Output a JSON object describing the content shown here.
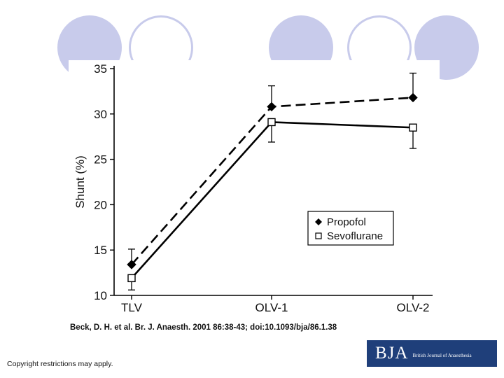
{
  "theme": {
    "decor_fill": "#c8cbeb",
    "logo_bg": "#1f3f7a"
  },
  "chart_data": {
    "type": "line",
    "title": "",
    "xlabel": "",
    "ylabel": "Shunt (%)",
    "categories": [
      "TLV",
      "OLV-1",
      "OLV-2"
    ],
    "ylim": [
      10,
      35
    ],
    "yticks": [
      10,
      15,
      20,
      25,
      30,
      35
    ],
    "legend_position": "right",
    "series": [
      {
        "name": "Propofol",
        "marker": "filled-diamond",
        "line": "dashed",
        "values": [
          13.4,
          30.8,
          31.8
        ],
        "error_up": [
          1.7,
          2.3,
          2.7
        ]
      },
      {
        "name": "Sevoflurane",
        "marker": "open-square",
        "line": "solid",
        "values": [
          11.9,
          29.1,
          28.5
        ],
        "error_down": [
          1.3,
          2.2,
          2.3
        ]
      }
    ]
  },
  "citation": "Beck, D. H. et al. Br. J. Anaesth. 2001 86:38-43; doi:10.1093/bja/86.1.38",
  "copyright": "Copyright restrictions may apply.",
  "logo": {
    "mark": "BJA",
    "subtitle": "British Journal of Anaesthesia"
  }
}
